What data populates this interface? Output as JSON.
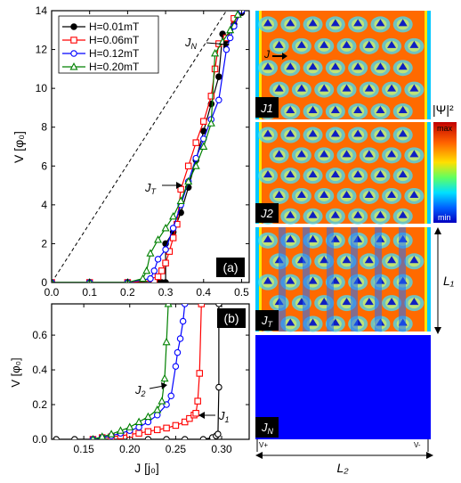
{
  "chart_data": [
    {
      "id": "a",
      "type": "scatter",
      "panel_label": "(a)",
      "xlabel": "",
      "ylabel": "V [φ₀]",
      "xlim": [
        0,
        0.52
      ],
      "ylim": [
        0,
        14
      ],
      "xticks": [
        "0.0",
        "0.1",
        "0.2",
        "0.3",
        "0.4",
        "0.5"
      ],
      "yticks": [
        "0",
        "2",
        "4",
        "6",
        "8",
        "10",
        "12",
        "14"
      ],
      "legend_position": "top-left",
      "annotations": [
        {
          "text": "J_N",
          "x": 0.43,
          "y": 12.6
        },
        {
          "text": "J_T",
          "x": 0.35,
          "y": 5.5
        }
      ],
      "reference_line": {
        "style": "dashed",
        "x": [
          0.0,
          0.46
        ],
        "y": [
          0.0,
          14.0
        ]
      },
      "series": [
        {
          "name": "H=0.01mT",
          "color": "#000000",
          "marker": "circle-filled",
          "x": [
            0.0,
            0.1,
            0.2,
            0.28,
            0.29,
            0.3,
            0.3,
            0.3,
            0.32,
            0.34,
            0.36,
            0.38,
            0.4,
            0.42,
            0.44,
            0.45,
            0.46,
            0.48,
            0.5
          ],
          "y": [
            0.0,
            0.0,
            0.0,
            0.0,
            0.0,
            0.0,
            1.0,
            2.0,
            2.6,
            3.6,
            4.9,
            6.3,
            7.8,
            9.2,
            10.6,
            12.8,
            12.5,
            13.3,
            13.9
          ]
        },
        {
          "name": "H=0.06mT",
          "color": "#ff0000",
          "marker": "square-open",
          "x": [
            0.0,
            0.1,
            0.2,
            0.27,
            0.28,
            0.29,
            0.3,
            0.31,
            0.32,
            0.33,
            0.34,
            0.36,
            0.38,
            0.4,
            0.42,
            0.43,
            0.44,
            0.46,
            0.48
          ],
          "y": [
            0.0,
            0.0,
            0.0,
            0.1,
            0.3,
            0.6,
            1.0,
            1.6,
            2.3,
            3.0,
            4.8,
            6.0,
            7.2,
            8.3,
            9.6,
            11.0,
            12.3,
            12.6,
            13.6
          ]
        },
        {
          "name": "H=0.12mT",
          "color": "#0000ff",
          "marker": "circle-open",
          "x": [
            0.0,
            0.1,
            0.2,
            0.26,
            0.27,
            0.28,
            0.3,
            0.32,
            0.34,
            0.36,
            0.38,
            0.4,
            0.42,
            0.44,
            0.46,
            0.47,
            0.48,
            0.5
          ],
          "y": [
            0.0,
            0.0,
            0.0,
            0.2,
            0.6,
            1.2,
            1.7,
            2.8,
            4.0,
            5.2,
            6.4,
            7.4,
            8.4,
            9.4,
            12.0,
            12.6,
            13.2,
            14.0
          ]
        },
        {
          "name": "H=0.20mT",
          "color": "#008000",
          "marker": "triangle-open",
          "x": [
            0.0,
            0.1,
            0.2,
            0.24,
            0.25,
            0.26,
            0.28,
            0.3,
            0.32,
            0.34,
            0.36,
            0.38,
            0.4,
            0.42,
            0.43,
            0.45,
            0.47,
            0.49
          ],
          "y": [
            0.0,
            0.0,
            0.0,
            0.2,
            0.6,
            1.5,
            2.2,
            2.8,
            3.4,
            4.2,
            5.2,
            6.0,
            7.0,
            8.2,
            11.8,
            12.4,
            13.0,
            13.8
          ]
        }
      ]
    },
    {
      "id": "b",
      "type": "scatter",
      "panel_label": "(b)",
      "xlabel": "J [j₀]",
      "ylabel": "V [φ₀]",
      "xlim": [
        0.115,
        0.33
      ],
      "ylim": [
        0,
        0.78
      ],
      "xticks": [
        "0.15",
        "0.20",
        "0.25",
        "0.30"
      ],
      "yticks": [
        "0.0",
        "0.2",
        "0.4",
        "0.6"
      ],
      "annotations": [
        {
          "text": "J₂",
          "x": 0.222,
          "y": 0.178
        },
        {
          "text": "J₁",
          "x": 0.285,
          "y": 0.133
        }
      ],
      "series": [
        {
          "name": "H=0.01mT",
          "color": "#000000",
          "marker": "circle-open",
          "x": [
            0.12,
            0.14,
            0.16,
            0.18,
            0.2,
            0.22,
            0.24,
            0.26,
            0.28,
            0.29,
            0.294,
            0.296,
            0.297,
            0.297
          ],
          "y": [
            0.0,
            0.0,
            0.0,
            0.0,
            0.0,
            0.0,
            0.0,
            0.0,
            0.0,
            0.01,
            0.02,
            0.03,
            0.3,
            0.78
          ]
        },
        {
          "name": "H=0.06mT",
          "color": "#ff0000",
          "marker": "square-open",
          "x": [
            0.16,
            0.17,
            0.18,
            0.19,
            0.2,
            0.21,
            0.22,
            0.23,
            0.24,
            0.25,
            0.26,
            0.265,
            0.27,
            0.272,
            0.274,
            0.276,
            0.278
          ],
          "y": [
            0.0,
            0.01,
            0.015,
            0.02,
            0.028,
            0.035,
            0.045,
            0.055,
            0.065,
            0.08,
            0.1,
            0.12,
            0.14,
            0.15,
            0.22,
            0.38,
            0.78
          ]
        },
        {
          "name": "H=0.12mT",
          "color": "#0000ff",
          "marker": "circle-open",
          "x": [
            0.16,
            0.17,
            0.18,
            0.19,
            0.2,
            0.21,
            0.22,
            0.23,
            0.24,
            0.245,
            0.25,
            0.252,
            0.255,
            0.258,
            0.26
          ],
          "y": [
            0.0,
            0.01,
            0.02,
            0.035,
            0.05,
            0.07,
            0.1,
            0.14,
            0.2,
            0.25,
            0.42,
            0.5,
            0.58,
            0.68,
            0.78
          ]
        },
        {
          "name": "H=0.20mT",
          "color": "#008000",
          "marker": "triangle-open",
          "x": [
            0.16,
            0.17,
            0.18,
            0.19,
            0.2,
            0.21,
            0.22,
            0.23,
            0.235,
            0.238,
            0.24,
            0.242
          ],
          "y": [
            0.0,
            0.015,
            0.03,
            0.05,
            0.07,
            0.1,
            0.13,
            0.17,
            0.22,
            0.35,
            0.56,
            0.78
          ]
        }
      ]
    },
    {
      "id": "maps",
      "type": "heatmap",
      "colorbar": {
        "title": "|Ψ|²",
        "max_label": "max",
        "min_label": "min"
      },
      "panels": [
        {
          "label": "J1",
          "annotation": "J"
        },
        {
          "label": "J2"
        },
        {
          "label": "J_T"
        },
        {
          "label": "J_N"
        }
      ],
      "dimension_labels": {
        "vertical": "L₁",
        "horizontal": "L₂"
      },
      "electrodes": {
        "left": "V+",
        "right": "V-"
      }
    }
  ]
}
